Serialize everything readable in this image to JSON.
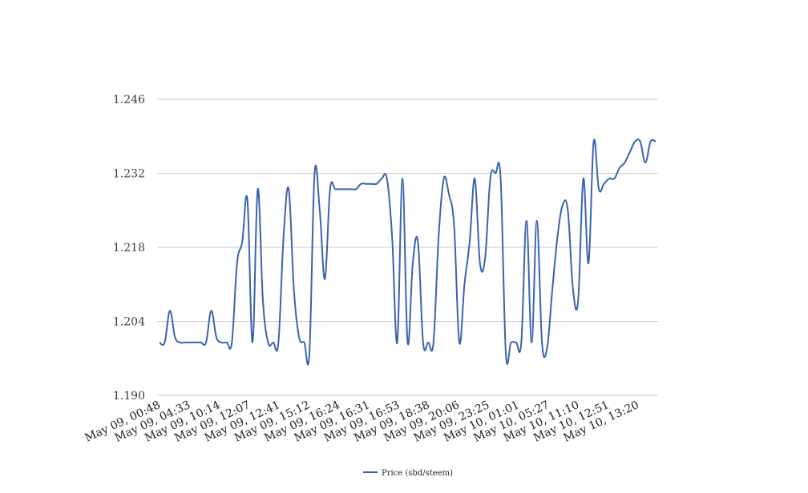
{
  "chart_data": {
    "type": "line",
    "title": "",
    "xlabel": "",
    "ylabel": "",
    "ylim": [
      1.19,
      1.246
    ],
    "yticks": [
      "1.246",
      "1.232",
      "1.218",
      "1.204",
      "1.190"
    ],
    "xtick_labels": [
      "May 09, 00:48",
      "May 09, 04:33",
      "May 09, 10:14",
      "May 09, 12:07",
      "May 09, 12:41",
      "May 09, 15:12",
      "May 09, 16:24",
      "May 09, 16:31",
      "May 09, 16:53",
      "May 09, 18:38",
      "May 09, 20:06",
      "May 09, 23:25",
      "May 10, 01:01",
      "May 10, 05:27",
      "May 10, 11:10",
      "May 10, 12:51",
      "May 10, 13:20"
    ],
    "grid": true,
    "legend": "bottom",
    "series": [
      {
        "name": "Price (sbd/steem)",
        "color": "#3a64b0",
        "values": [
          1.2,
          1.2,
          1.206,
          1.201,
          1.2,
          1.2,
          1.2,
          1.2,
          1.2,
          1.2,
          1.206,
          1.201,
          1.2,
          1.2,
          1.2,
          1.215,
          1.219,
          1.227,
          1.2,
          1.229,
          1.208,
          1.2,
          1.2,
          1.2,
          1.22,
          1.229,
          1.21,
          1.201,
          1.2,
          1.198,
          1.232,
          1.225,
          1.212,
          1.229,
          1.229,
          1.229,
          1.229,
          1.229,
          1.229,
          1.23,
          1.23,
          1.23,
          1.23,
          1.231,
          1.231,
          1.22,
          1.2,
          1.231,
          1.2,
          1.215,
          1.219,
          1.2,
          1.2,
          1.2,
          1.22,
          1.231,
          1.228,
          1.222,
          1.2,
          1.211,
          1.219,
          1.231,
          1.215,
          1.216,
          1.231,
          1.232,
          1.231,
          1.198,
          1.2,
          1.2,
          1.2,
          1.223,
          1.2,
          1.223,
          1.2,
          1.199,
          1.21,
          1.22,
          1.226,
          1.225,
          1.21,
          1.208,
          1.231,
          1.215,
          1.238,
          1.229,
          1.23,
          1.231,
          1.231,
          1.233,
          1.234,
          1.236,
          1.238,
          1.238,
          1.234,
          1.238,
          1.238
        ]
      }
    ]
  }
}
